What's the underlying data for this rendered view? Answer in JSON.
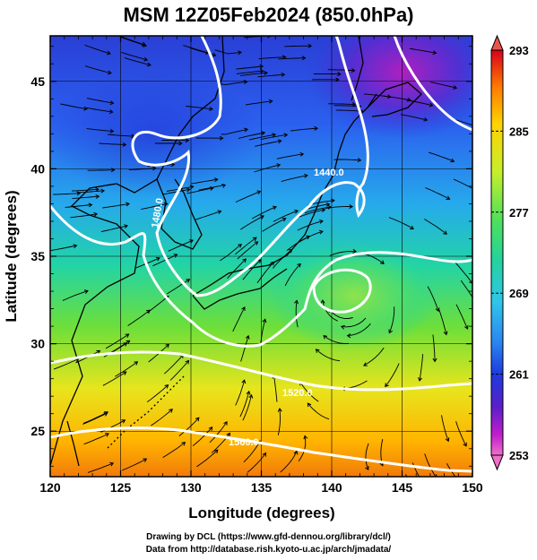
{
  "title": "MSM 12Z05Feb2024 (850.0hPa)",
  "axes": {
    "xlabel": "Longitude (degrees)",
    "ylabel": "Latitude  (degrees)",
    "xticks": [
      "120",
      "125",
      "130",
      "135",
      "140",
      "145",
      "150"
    ],
    "yticks": [
      "25",
      "30",
      "35",
      "40",
      "45"
    ],
    "xlim": [
      120,
      150
    ],
    "ylim": [
      22.4,
      47.6
    ]
  },
  "colorbar": {
    "ticks": [
      "293",
      "285",
      "277",
      "269",
      "261",
      "253"
    ],
    "min": 253,
    "max": 293,
    "colors": {
      "top_arrow": "#e8564a",
      "bottom_arrow": "#ee6ec8",
      "stops": [
        "#d9001d",
        "#ff7a00",
        "#ffd200",
        "#c6ef2a",
        "#4ee05b",
        "#22d39e",
        "#2fc6e8",
        "#2b86f0",
        "#1c3be0",
        "#5a1fc8",
        "#c21ecc",
        "#f070c8"
      ]
    }
  },
  "contours": [
    {
      "label": "1440.0"
    },
    {
      "label": "1480.0"
    },
    {
      "label": "1520.0"
    },
    {
      "label": "1560.0"
    }
  ],
  "credits": {
    "line1": "Drawing by DCL (https://www.gfd-dennou.org/library/dcl/)",
    "line2": "Data from http://database.rish.kyoto-u.ac.jp/arch/jmadata/"
  }
}
